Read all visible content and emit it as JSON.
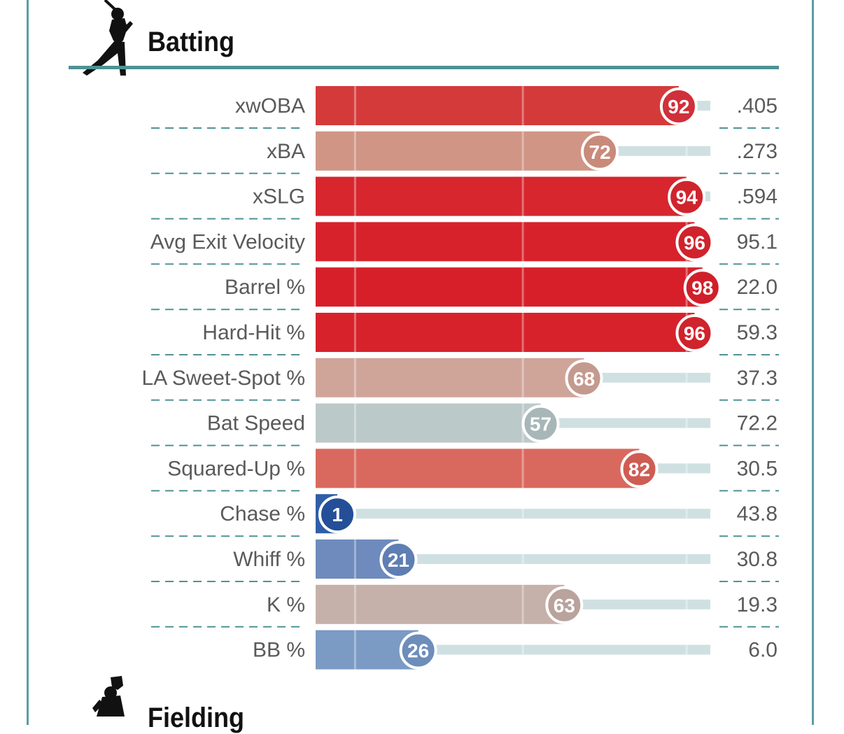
{
  "sections": {
    "batting_title": "Batting",
    "fielding_title": "Fielding"
  },
  "icons": {
    "batter": "batter-silhouette-icon",
    "fielder": "fielder-silhouette-icon"
  },
  "colors": {
    "frame": "#5a9ea3",
    "divider": "#4f9295",
    "track": "#cfe0e2"
  },
  "chart_data": {
    "type": "bar",
    "title": "Batting",
    "orientation": "horizontal",
    "xlim": [
      0,
      100
    ],
    "categories": [
      "xwOBA",
      "xBA",
      "xSLG",
      "Avg Exit Velocity",
      "Barrel %",
      "Hard-Hit %",
      "LA Sweet-Spot %",
      "Bat Speed",
      "Squared-Up %",
      "Chase %",
      "Whiff %",
      "K %",
      "BB %"
    ],
    "series": [
      {
        "name": "Percentile",
        "values": [
          92,
          72,
          94,
          96,
          98,
          96,
          68,
          57,
          82,
          1,
          21,
          63,
          26
        ]
      },
      {
        "name": "Stat value",
        "values": [
          ".405",
          ".273",
          ".594",
          "95.1",
          "22.0",
          "59.3",
          "37.3",
          "72.2",
          "30.5",
          "43.8",
          "30.8",
          "19.3",
          "6.0"
        ]
      }
    ],
    "bar_colors": [
      "#d53a3a",
      "#d09585",
      "#d7262e",
      "#d7222c",
      "#d71f2a",
      "#d7222c",
      "#cfa59a",
      "#bcc9c9",
      "#d9695e",
      "#2f5ea8",
      "#6f8bbd",
      "#c6b1aa",
      "#7b9ac4"
    ],
    "circle_colors": [
      "#d0303a",
      "#c98a7a",
      "#d0242d",
      "#d0232c",
      "#d01f2a",
      "#d0232c",
      "#c49a8e",
      "#a7b6b6",
      "#cf5c52",
      "#244f98",
      "#5f7eb3",
      "#b9a39c",
      "#6d8dbb"
    ]
  }
}
